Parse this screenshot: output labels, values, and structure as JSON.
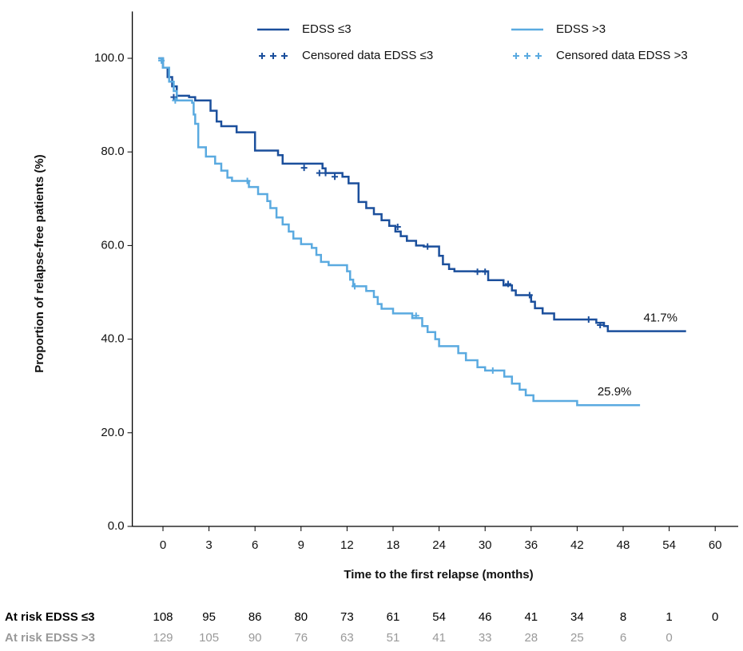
{
  "chart_data": {
    "type": "kaplan-meier",
    "y_label": "Proportion of relapse-free patients (%)",
    "x_label": "Time to the first relapse (months)",
    "xlim": [
      -2,
      63
    ],
    "ylim": [
      0,
      110
    ],
    "xticks": [
      0,
      3,
      6,
      9,
      12,
      18,
      24,
      30,
      36,
      42,
      48,
      54,
      60
    ],
    "yticks": [
      {
        "value": 0,
        "label": "0.0"
      },
      {
        "value": 20,
        "label": "20.0"
      },
      {
        "value": 40,
        "label": "40.0"
      },
      {
        "value": 60,
        "label": "60.0"
      },
      {
        "value": 80,
        "label": "80.0"
      },
      {
        "value": 100,
        "label": "100.0"
      }
    ],
    "series": [
      {
        "name": "EDSS ≤3",
        "color": "#1b4f9c",
        "end_label": "41.7%",
        "x": [
          -0.3,
          0,
          0.3,
          0.6,
          0.9,
          1.7,
          2.1,
          3.1,
          3.5,
          3.8,
          4.8,
          6,
          7.5,
          7.8,
          10.4,
          10.6,
          11.7,
          12.2,
          13.5,
          14.5,
          15.5,
          16.5,
          17.5,
          18.3,
          19,
          19.8,
          21,
          22,
          24,
          24.5,
          25.3,
          26,
          30.4,
          32.4,
          33.5,
          34,
          36,
          36.5,
          37.5,
          39,
          44.5,
          45.5,
          46,
          56.2
        ],
        "values": [
          100,
          98,
          96,
          94,
          92,
          91.7,
          91,
          88.8,
          86.5,
          85.5,
          84.2,
          80.3,
          79.3,
          77.5,
          76.5,
          75.5,
          74.7,
          73.3,
          69.3,
          68,
          66.7,
          65.4,
          64.2,
          63,
          62,
          61,
          60,
          59.8,
          57.8,
          56,
          55,
          54.5,
          52.6,
          51.5,
          50.4,
          49.4,
          48,
          46.6,
          45.5,
          44.2,
          43.5,
          42.8,
          41.7,
          41.7
        ]
      },
      {
        "name": "EDSS >3",
        "color": "#5aaae0",
        "end_label": "25.9%",
        "x": [
          -0.3,
          0,
          0.4,
          0.7,
          0.9,
          1.9,
          2,
          2.1,
          2.3,
          2.8,
          3.4,
          3.8,
          4.2,
          4.5,
          5.6,
          6.2,
          6.8,
          7,
          7.4,
          7.8,
          8.2,
          8.5,
          9,
          9.7,
          10,
          10.3,
          10.8,
          12,
          12.4,
          12.8,
          14.5,
          15.5,
          16,
          16.5,
          18,
          20.5,
          21.8,
          22.5,
          23.5,
          24,
          26.5,
          27.5,
          29,
          30,
          32.5,
          33.5,
          34.5,
          35.3,
          36.3,
          42,
          50.2
        ],
        "values": [
          100,
          98,
          95,
          93,
          91,
          90.5,
          88,
          86,
          81,
          79,
          77.5,
          76,
          74.5,
          73.8,
          72.5,
          71,
          69.5,
          68,
          66,
          64.5,
          63,
          61.5,
          60.3,
          59.5,
          58,
          56.5,
          55.8,
          54.5,
          52.7,
          51.3,
          50.3,
          49,
          47.5,
          46.5,
          45.5,
          44.5,
          42.8,
          41.5,
          40,
          38.5,
          37,
          35.5,
          34,
          33.3,
          32,
          30.5,
          29.2,
          28,
          26.8,
          25.9,
          25.9
        ]
      },
      {
        "name": "Censored data EDSS ≤3",
        "color": "#1b4f9c",
        "marker": "plus",
        "x": [
          0.7,
          9.2,
          10.2,
          10.6,
          11.2,
          18.6,
          22.5,
          29,
          30,
          33,
          35.8,
          43.5,
          45
        ],
        "values": [
          91.7,
          76.6,
          75.5,
          75.5,
          74.7,
          64,
          59.8,
          54.4,
          54.4,
          51.8,
          49.4,
          44.2,
          43
        ]
      },
      {
        "name": "Censored data EDSS >3",
        "color": "#5aaae0",
        "marker": "plus",
        "x": [
          -0.1,
          0.8,
          5.5,
          13,
          21,
          31
        ],
        "values": [
          99.5,
          91,
          73.8,
          51.3,
          45,
          33.3
        ]
      }
    ],
    "at_risk": [
      {
        "label": "At risk EDSS ≤3",
        "color": "#000000",
        "values": [
          108,
          95,
          86,
          80,
          73,
          61,
          54,
          46,
          41,
          34,
          8,
          1,
          0
        ]
      },
      {
        "label": "At risk EDSS >3",
        "color": "#999999",
        "values": [
          129,
          105,
          90,
          76,
          63,
          51,
          41,
          33,
          28,
          25,
          6,
          0
        ]
      }
    ]
  }
}
